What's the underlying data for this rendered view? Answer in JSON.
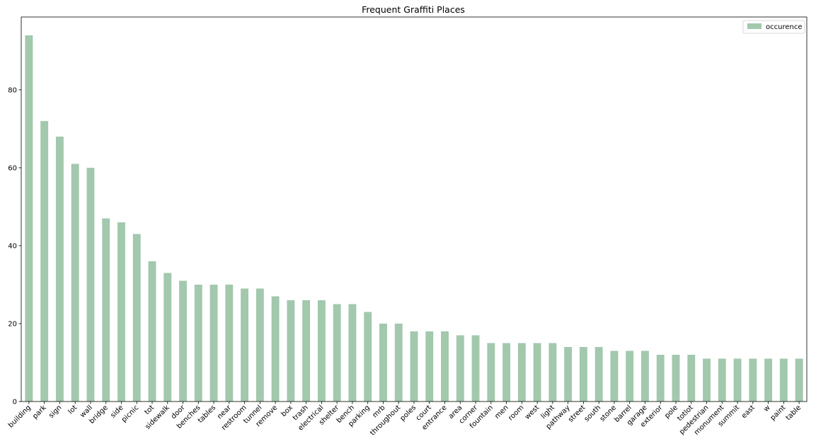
{
  "chart_data": {
    "type": "bar",
    "title": "Frequent Graffiti Places",
    "xlabel": "",
    "ylabel": "",
    "ylim": [
      0,
      98.7
    ],
    "yticks": [
      0,
      20,
      40,
      60,
      80
    ],
    "legend": {
      "placement": "top-right"
    },
    "grid": false,
    "bar_color": "#a2c8ad",
    "categories": [
      "building",
      "park",
      "sign",
      "lot",
      "wall",
      "bridge",
      "side",
      "picnic",
      "tot",
      "sidewalk",
      "door",
      "benches",
      "tables",
      "near",
      "restroom",
      "tunnel",
      "remove",
      "box",
      "trash",
      "electrical",
      "shelter",
      "bench",
      "parking",
      "mrb",
      "throughout",
      "poles",
      "court",
      "entrance",
      "area",
      "corner",
      "fountain",
      "men",
      "room",
      "west",
      "light",
      "pathway",
      "street",
      "south",
      "stone",
      "barrel",
      "garage",
      "exterior",
      "pole",
      "totlot",
      "pedestrian",
      "monument",
      "summit",
      "east",
      "w",
      "paint",
      "table"
    ],
    "series": [
      {
        "name": "occurence",
        "values": [
          94,
          72,
          68,
          61,
          60,
          47,
          46,
          43,
          36,
          33,
          31,
          30,
          30,
          30,
          29,
          29,
          27,
          26,
          26,
          26,
          25,
          25,
          23,
          20,
          20,
          18,
          18,
          18,
          17,
          17,
          15,
          15,
          15,
          15,
          15,
          14,
          14,
          14,
          13,
          13,
          13,
          12,
          12,
          12,
          11,
          11,
          11,
          11,
          11,
          11,
          11
        ]
      }
    ]
  }
}
